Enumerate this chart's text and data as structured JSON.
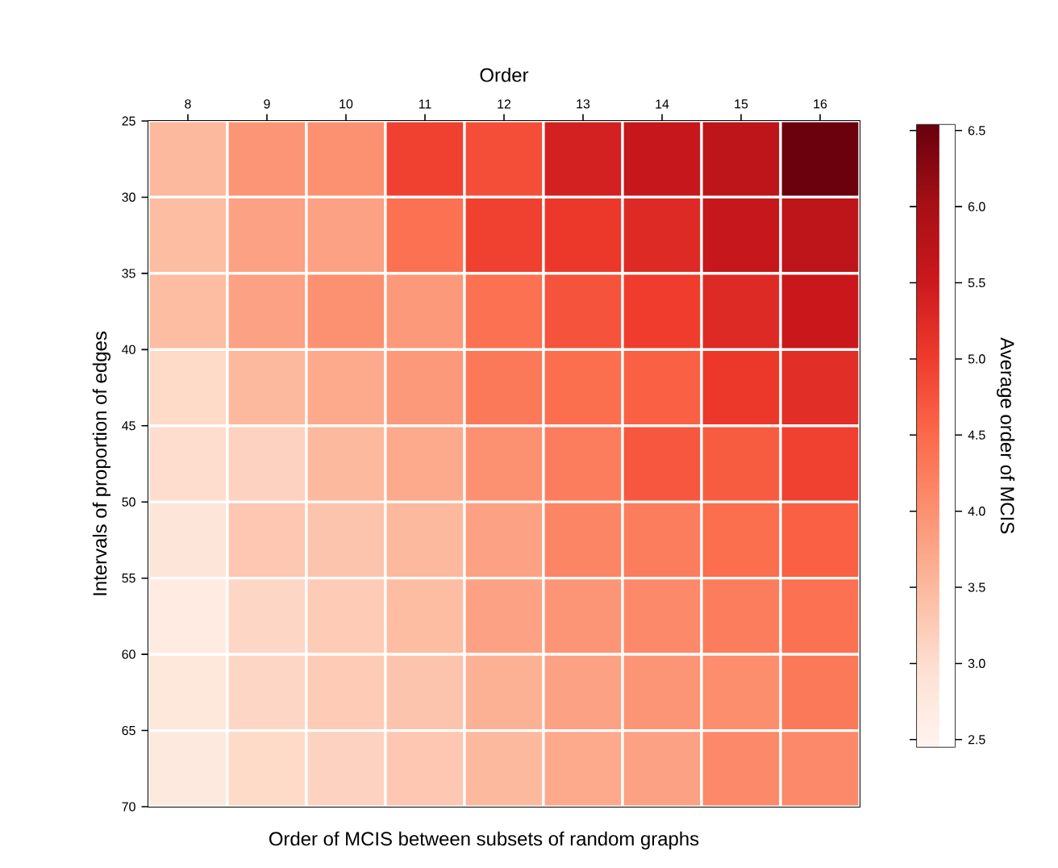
{
  "chart_data": {
    "type": "heatmap",
    "xlabel": "Order",
    "ylabel": "Intervals of proportion of edges",
    "clabel": "Average order of MCIS",
    "annotations": [
      "Order of MCIS between subsets of random graphs"
    ],
    "categories": [
      "8",
      "9",
      "10",
      "11",
      "12",
      "13",
      "14",
      "15",
      "16"
    ],
    "ylim": [
      70,
      25
    ],
    "yticks": [
      25,
      30,
      35,
      40,
      45,
      50,
      55,
      60,
      65,
      70
    ],
    "cells": [
      [
        3.5,
        3.95,
        4.0,
        4.95,
        4.8,
        5.4,
        5.6,
        5.7,
        6.5
      ],
      [
        3.45,
        3.8,
        3.8,
        4.4,
        4.95,
        5.05,
        5.25,
        5.6,
        5.7
      ],
      [
        3.45,
        3.8,
        4.0,
        3.9,
        4.4,
        4.75,
        5.0,
        5.25,
        5.55
      ],
      [
        3.05,
        3.5,
        3.7,
        3.9,
        4.3,
        4.45,
        4.6,
        5.05,
        5.2
      ],
      [
        3.0,
        3.15,
        3.5,
        3.7,
        4.0,
        4.25,
        4.7,
        4.65,
        4.95
      ],
      [
        2.85,
        3.3,
        3.35,
        3.5,
        3.8,
        4.15,
        4.25,
        4.45,
        4.6
      ],
      [
        2.7,
        3.1,
        3.25,
        3.45,
        3.8,
        3.95,
        4.1,
        4.25,
        4.4
      ],
      [
        2.8,
        3.1,
        3.25,
        3.35,
        3.6,
        3.8,
        3.95,
        4.05,
        4.3
      ],
      [
        2.75,
        3.05,
        3.15,
        3.3,
        3.5,
        3.7,
        3.8,
        4.1,
        4.1
      ]
    ],
    "clim": [
      2.45,
      6.54
    ],
    "cticks": [
      {
        "value": 2.5,
        "label": "2.5"
      },
      {
        "value": 3.0,
        "label": "3.0"
      },
      {
        "value": 3.5,
        "label": "3.5"
      },
      {
        "value": 4.0,
        "label": "4.0"
      },
      {
        "value": 4.5,
        "label": "4.5"
      },
      {
        "value": 5.0,
        "label": "5.0"
      },
      {
        "value": 5.5,
        "label": "5.5"
      },
      {
        "value": 6.0,
        "label": "6.0"
      },
      {
        "value": 6.5,
        "label": "6.5"
      }
    ]
  }
}
